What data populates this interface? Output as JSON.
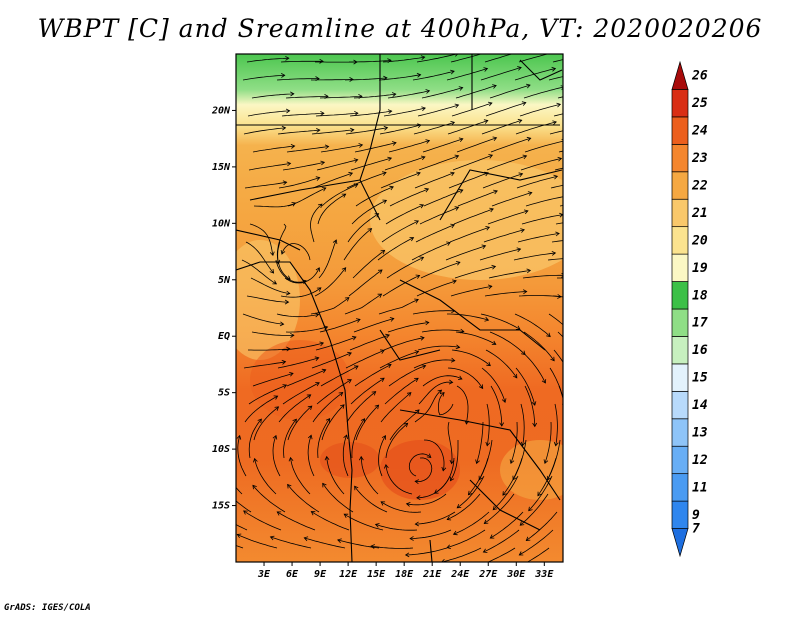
{
  "title": "WBPT [C] and Sreamline at 400hPa, VT: 2020020206",
  "footer": "GrADS: IGES/COLA",
  "map": {
    "lon_range": [
      0,
      35
    ],
    "lat_range": [
      -20,
      25
    ],
    "lat_ticks": [
      "20N",
      "15N",
      "10N",
      "5N",
      "EQ",
      "5S",
      "10S",
      "15S"
    ],
    "lat_values": [
      20,
      15,
      10,
      5,
      0,
      -5,
      -10,
      -15
    ],
    "lon_ticks": [
      "3E",
      "6E",
      "9E",
      "12E",
      "15E",
      "18E",
      "21E",
      "24E",
      "27E",
      "30E",
      "33E"
    ],
    "lon_values": [
      3,
      6,
      9,
      12,
      15,
      18,
      21,
      24,
      27,
      30,
      33
    ],
    "field": "WBPT",
    "level": "400hPa"
  },
  "colorbar": {
    "labels": [
      "7",
      "9",
      "11",
      "12",
      "13",
      "14",
      "15",
      "16",
      "17",
      "18",
      "19",
      "20",
      "21",
      "22",
      "23",
      "24",
      "25",
      "26"
    ],
    "colors": [
      "#1e6fe0",
      "#2f86ee",
      "#4a9bf2",
      "#68aef5",
      "#8ec4f8",
      "#b8dafb",
      "#e3f2fc",
      "#c7f0bf",
      "#8fde86",
      "#3cc047",
      "#fbf7c4",
      "#fbe38f",
      "#f9c86b",
      "#f5a842",
      "#f4862e",
      "#ec5f1d",
      "#d92e14",
      "#a80b0b"
    ]
  }
}
